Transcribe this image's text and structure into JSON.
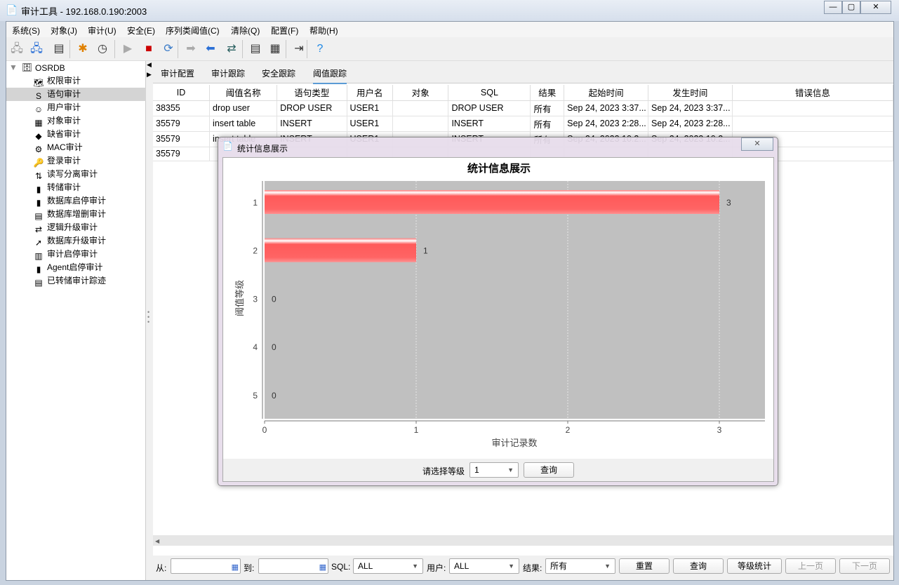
{
  "window": {
    "title": "审计工具 - 192.168.0.190:2003",
    "min": "—",
    "max": "▢",
    "close": "✕"
  },
  "menu": [
    "系统(S)",
    "对象(J)",
    "审计(U)",
    "安全(E)",
    "序列类阈值(C)",
    "清除(Q)",
    "配置(F)",
    "帮助(H)"
  ],
  "toolbar": [
    "connect-icon",
    "disconnect-icon",
    "tree-icon",
    "clear-icon",
    "timer-icon",
    "play-icon",
    "stop-icon",
    "refresh-icon",
    "forward-icon",
    "back-icon",
    "swap-icon",
    "report-icon",
    "grid-icon",
    "exit-icon",
    "help-icon"
  ],
  "tree": {
    "root": "OSRDB",
    "items": [
      {
        "label": "权限审计",
        "icon": "privilege-icon"
      },
      {
        "label": "语句审计",
        "icon": "sql-icon",
        "selected": true
      },
      {
        "label": "用户审计",
        "icon": "users-icon"
      },
      {
        "label": "对象审计",
        "icon": "object-icon"
      },
      {
        "label": "缺省审计",
        "icon": "default-icon"
      },
      {
        "label": "MAC审计",
        "icon": "mac-icon"
      },
      {
        "label": "登录审计",
        "icon": "key-icon"
      },
      {
        "label": "读写分离审计",
        "icon": "rw-icon"
      },
      {
        "label": "转储审计",
        "icon": "server-icon"
      },
      {
        "label": "数据库启停审计",
        "icon": "db-icon"
      },
      {
        "label": "数据库增删审计",
        "icon": "db-edit-icon"
      },
      {
        "label": "逻辑升级审计",
        "icon": "swap-icon"
      },
      {
        "label": "数据库升级审计",
        "icon": "upgrade-icon"
      },
      {
        "label": "审计启停审计",
        "icon": "monitor-icon"
      },
      {
        "label": "Agent启停审计",
        "icon": "agent-icon"
      },
      {
        "label": "已转储审计踪迹",
        "icon": "trace-icon"
      }
    ]
  },
  "tabs": [
    "审计配置",
    "审计跟踪",
    "安全跟踪",
    "阈值跟踪"
  ],
  "active_tab": 3,
  "table": {
    "columns": [
      "ID",
      "阈值名称",
      "语句类型",
      "用户名",
      "对象",
      "SQL",
      "结果",
      "起始时间",
      "发生时间",
      "错误信息"
    ],
    "rows": [
      [
        "38355",
        "drop user",
        "DROP USER",
        "USER1",
        "",
        "DROP USER",
        "所有",
        "Sep 24, 2023 3:37...",
        "Sep 24, 2023 3:37...",
        ""
      ],
      [
        "35579",
        "insert table",
        "INSERT",
        "USER1",
        "",
        "INSERT",
        "所有",
        "Sep 24, 2023 2:28...",
        "Sep 24, 2023 2:28...",
        ""
      ],
      [
        "35579",
        "insert table",
        "INSERT",
        "USER1",
        "",
        "INSERT",
        "所有",
        "Sep 24, 2023 10:2...",
        "Sep 24, 2023 10:2...",
        ""
      ],
      [
        "35579",
        "",
        "",
        "",
        "",
        "",
        "",
        "",
        "",
        ""
      ]
    ]
  },
  "filter": {
    "from_label": "从:",
    "to_label": "到:",
    "sql_label": "SQL:",
    "sql_value": "ALL",
    "user_label": "用户:",
    "user_value": "ALL",
    "result_label": "结果:",
    "result_value": "所有",
    "reset": "重置",
    "query": "查询",
    "level_stats": "等级统计",
    "prev": "上一页",
    "next": "下一页"
  },
  "dialog": {
    "title": "统计信息展示",
    "close": "✕",
    "level_label": "请选择等级",
    "level_value": "1",
    "query": "查询"
  },
  "chart_data": {
    "type": "bar",
    "orientation": "horizontal",
    "title": "统计信息展示",
    "xlabel": "审计记录数",
    "ylabel": "阈值等级",
    "categories": [
      "1",
      "2",
      "3",
      "4",
      "5"
    ],
    "values": [
      3,
      1,
      0,
      0,
      0
    ],
    "xlim": [
      0,
      3.3
    ],
    "xticks": [
      "0",
      "1",
      "2",
      "3"
    ],
    "grid": true,
    "bar_color": "#ff5a5a",
    "plot_bg": "#c0c0c0"
  }
}
